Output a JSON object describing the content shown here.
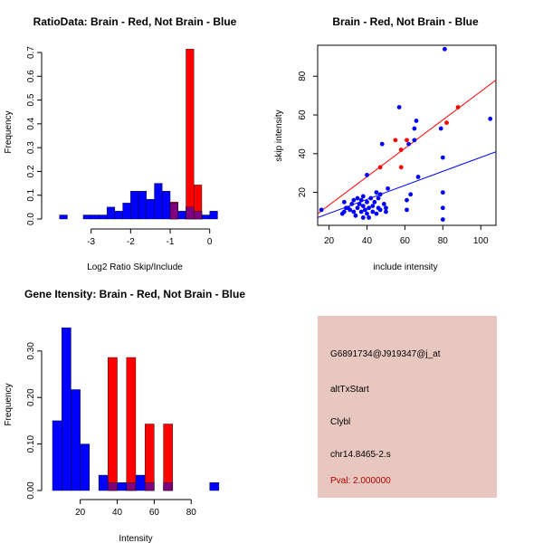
{
  "colors": {
    "brain": "#ff0000",
    "not_brain": "#0000ff",
    "overlap": "#7f007f",
    "axis": "#000000",
    "info_bg": "#e8c7c0",
    "pval": "#b00000"
  },
  "chart_data": [
    {
      "type": "bar",
      "id": "ratio",
      "title": "RatioData: Brain - Red, Not Brain - Blue",
      "xlabel": "Log2 Ratio Skip/Include",
      "ylabel": "Frequency",
      "xlim": [
        -4.0,
        0.35
      ],
      "ylim": [
        0,
        0.7
      ],
      "xticks": [
        -3,
        -2,
        -1,
        0
      ],
      "xtick_labels": [
        "-3",
        "-2",
        "-1",
        "0"
      ],
      "yticks": [
        0.0,
        0.1,
        0.2,
        0.3,
        0.4,
        0.5,
        0.6,
        0.7
      ],
      "ytick_labels": [
        "0.0",
        "0.1",
        "0.2",
        "0.3",
        "0.4",
        "0.5",
        "0.6",
        "0.7"
      ],
      "bin_width": 0.2,
      "series": [
        {
          "name": "Not Brain",
          "color": "blue",
          "bin_starts": [
            -3.8,
            -3.2,
            -3.0,
            -2.8,
            -2.6,
            -2.4,
            -2.2,
            -2.0,
            -1.8,
            -1.6,
            -1.4,
            -1.2,
            -1.0,
            -0.8,
            -0.6,
            -0.4,
            -0.2,
            0.0
          ],
          "values": [
            0.017,
            0.017,
            0.017,
            0.017,
            0.05,
            0.033,
            0.067,
            0.117,
            0.117,
            0.083,
            0.15,
            0.117,
            0.067,
            0.033,
            0.05,
            0.033,
            0.017,
            0.033
          ]
        },
        {
          "name": "Brain",
          "color": "red",
          "bin_starts": [
            -1.0,
            -0.6,
            -0.4
          ],
          "values": [
            0.071,
            0.714,
            0.143
          ]
        }
      ]
    },
    {
      "type": "scatter",
      "id": "scatter",
      "title": "Brain - Red, Not Brain - Blue",
      "xlabel": "include intensity",
      "ylabel": "skip intensity",
      "xlim": [
        14,
        108
      ],
      "ylim": [
        3,
        96
      ],
      "xticks": [
        20,
        40,
        60,
        80,
        100
      ],
      "xtick_labels": [
        "20",
        "40",
        "60",
        "80",
        "100"
      ],
      "yticks": [
        20,
        40,
        60,
        80
      ],
      "ytick_labels": [
        "20",
        "40",
        "60",
        "80"
      ],
      "series": [
        {
          "name": "Not Brain",
          "color": "blue",
          "points": [
            [
              16,
              11
            ],
            [
              27,
              9
            ],
            [
              28,
              10
            ],
            [
              28,
              15
            ],
            [
              29,
              12
            ],
            [
              30,
              12
            ],
            [
              31,
              11
            ],
            [
              32,
              14
            ],
            [
              33,
              10
            ],
            [
              33,
              16
            ],
            [
              34,
              8
            ],
            [
              35,
              12
            ],
            [
              35,
              17
            ],
            [
              36,
              14
            ],
            [
              37,
              10
            ],
            [
              37,
              16
            ],
            [
              38,
              7
            ],
            [
              38,
              13
            ],
            [
              38,
              18
            ],
            [
              39,
              11
            ],
            [
              40,
              9
            ],
            [
              40,
              15
            ],
            [
              40,
              29
            ],
            [
              41,
              7
            ],
            [
              41,
              12
            ],
            [
              42,
              17
            ],
            [
              43,
              10
            ],
            [
              43,
              13
            ],
            [
              44,
              15
            ],
            [
              45,
              9
            ],
            [
              45,
              20
            ],
            [
              46,
              12
            ],
            [
              46,
              17
            ],
            [
              47,
              11
            ],
            [
              47,
              19
            ],
            [
              48,
              45
            ],
            [
              49,
              14
            ],
            [
              50,
              10
            ],
            [
              50,
              12
            ],
            [
              51,
              22
            ],
            [
              57,
              64
            ],
            [
              61,
              11
            ],
            [
              61,
              16
            ],
            [
              62,
              45
            ],
            [
              63,
              19
            ],
            [
              65,
              53
            ],
            [
              65,
              47
            ],
            [
              66,
              57
            ],
            [
              67,
              28
            ],
            [
              79,
              53
            ],
            [
              80,
              38
            ],
            [
              80,
              20
            ],
            [
              80,
              12
            ],
            [
              80,
              6
            ],
            [
              81,
              94
            ],
            [
              105,
              58
            ]
          ]
        },
        {
          "name": "Brain",
          "color": "red",
          "points": [
            [
              47,
              33
            ],
            [
              55,
              47
            ],
            [
              58,
              33
            ],
            [
              58,
              42
            ],
            [
              61,
              47
            ],
            [
              82,
              56
            ],
            [
              88,
              64
            ]
          ]
        }
      ],
      "fit_lines": [
        {
          "name": "Brain fit",
          "color": "red",
          "x": [
            14,
            108
          ],
          "y": [
            9,
            78
          ]
        },
        {
          "name": "Not Brain fit",
          "color": "blue",
          "x": [
            14,
            108
          ],
          "y": [
            7,
            41
          ]
        }
      ]
    },
    {
      "type": "bar",
      "id": "intensity",
      "title": "Gene Itensity: Brain - Red, Not Brain - Blue",
      "xlabel": "Intensity",
      "ylabel": "Frequency",
      "xlim": [
        5,
        97
      ],
      "ylim": [
        0,
        0.36
      ],
      "xticks": [
        20,
        40,
        60,
        80
      ],
      "xtick_labels": [
        "20",
        "40",
        "60",
        "80"
      ],
      "yticks": [
        0.0,
        0.1,
        0.2,
        0.3
      ],
      "ytick_labels": [
        "0.00",
        "0.10",
        "0.20",
        "0.30"
      ],
      "bin_width": 5,
      "series": [
        {
          "name": "Not Brain",
          "color": "blue",
          "bin_starts": [
            5,
            10,
            15,
            20,
            25,
            30,
            35,
            40,
            45,
            50,
            55,
            60,
            65,
            70,
            75,
            80,
            85,
            90
          ],
          "values": [
            0.15,
            0.35,
            0.217,
            0.1,
            0.0,
            0.033,
            0.017,
            0.017,
            0.017,
            0.033,
            0.017,
            0.0,
            0.017,
            0.0,
            0.0,
            0.0,
            0.0,
            0.017
          ]
        },
        {
          "name": "Brain",
          "color": "red",
          "bin_starts": [
            35,
            45,
            55,
            65
          ],
          "values": [
            0.286,
            0.286,
            0.143,
            0.143
          ]
        }
      ]
    }
  ],
  "info": {
    "probe": "G6891734@J919347@j_at",
    "event": "altTxStart",
    "gene": "Clybl",
    "location": "chr14.8465-2.s",
    "pval": "Pval: 2.000000"
  }
}
